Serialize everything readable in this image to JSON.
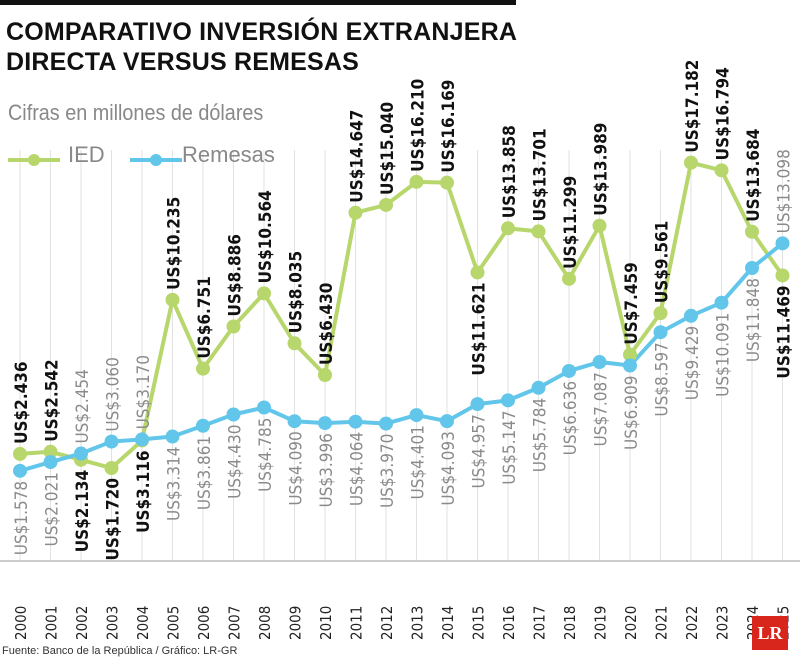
{
  "title_line1": "COMPARATIVO INVERSIÓN EXTRANJERA",
  "title_line2": "DIRECTA VERSUS REMESAS",
  "footer": "Fuente: Banco de la República / Gráfico: LR-GR",
  "logo": "LR",
  "chart_data": {
    "type": "line",
    "subtitle": "Cifras en millones de dólares",
    "legend_placement": "top-left",
    "grid": "vertical",
    "label_prefix": "US$",
    "categories": [
      "2000",
      "2001",
      "2002",
      "2003",
      "2004",
      "2005",
      "2006",
      "2007",
      "2008",
      "2009",
      "2010",
      "2011",
      "2012",
      "2013",
      "2014",
      "2015",
      "2016",
      "2017",
      "2018",
      "2019",
      "2020",
      "2021",
      "2022",
      "2023",
      "2024",
      "2025"
    ],
    "series": [
      {
        "name": "IED",
        "color": "#b7d66b",
        "values": [
          2.436,
          2.542,
          2.134,
          1.72,
          3.116,
          10.235,
          6.751,
          8.886,
          10.564,
          8.035,
          6.43,
          14.647,
          15.04,
          16.21,
          16.169,
          11.621,
          13.858,
          13.701,
          11.299,
          13.989,
          7.459,
          9.561,
          17.182,
          16.794,
          13.684,
          11.469
        ],
        "labels": [
          "US$2.436",
          "US$2.542",
          "US$2.134",
          "US$1.720",
          "US$3.116",
          "US$10.235",
          "US$6.751",
          "US$8.886",
          "US$10.564",
          "US$8.035",
          "US$6.430",
          "US$14.647",
          "US$15.040",
          "US$16.210",
          "US$16.169",
          "US$11.621",
          "US$13.858",
          "US$13.701",
          "US$11.299",
          "US$13.989",
          "US$7.459",
          "US$9.561",
          "US$17.182",
          "US$16.794",
          "US$13.684",
          "US$11.469"
        ]
      },
      {
        "name": "Remesas",
        "color": "#62c6ea",
        "values": [
          1.578,
          2.021,
          2.454,
          3.06,
          3.17,
          3.314,
          3.861,
          4.43,
          4.785,
          4.09,
          3.996,
          4.064,
          3.97,
          4.401,
          4.093,
          4.957,
          5.147,
          5.784,
          6.636,
          7.087,
          6.909,
          8.597,
          9.429,
          10.091,
          11.848,
          13.098
        ],
        "labels": [
          "US$1.578",
          "US$2.021",
          "US$2.454",
          "US$3.060",
          "US$3.170",
          "US$3.314",
          "US$3.861",
          "US$4.430",
          "US$4.785",
          "US$4.090",
          "US$3.996",
          "US$4.064",
          "US$3.970",
          "US$4.401",
          "US$4.093",
          "US$4.957",
          "US$5.147",
          "US$5.784",
          "US$6.636",
          "US$7.087",
          "US$6.909",
          "US$8.597",
          "US$9.429",
          "US$10.091",
          "US$11.848",
          "US$13.098"
        ]
      }
    ]
  }
}
